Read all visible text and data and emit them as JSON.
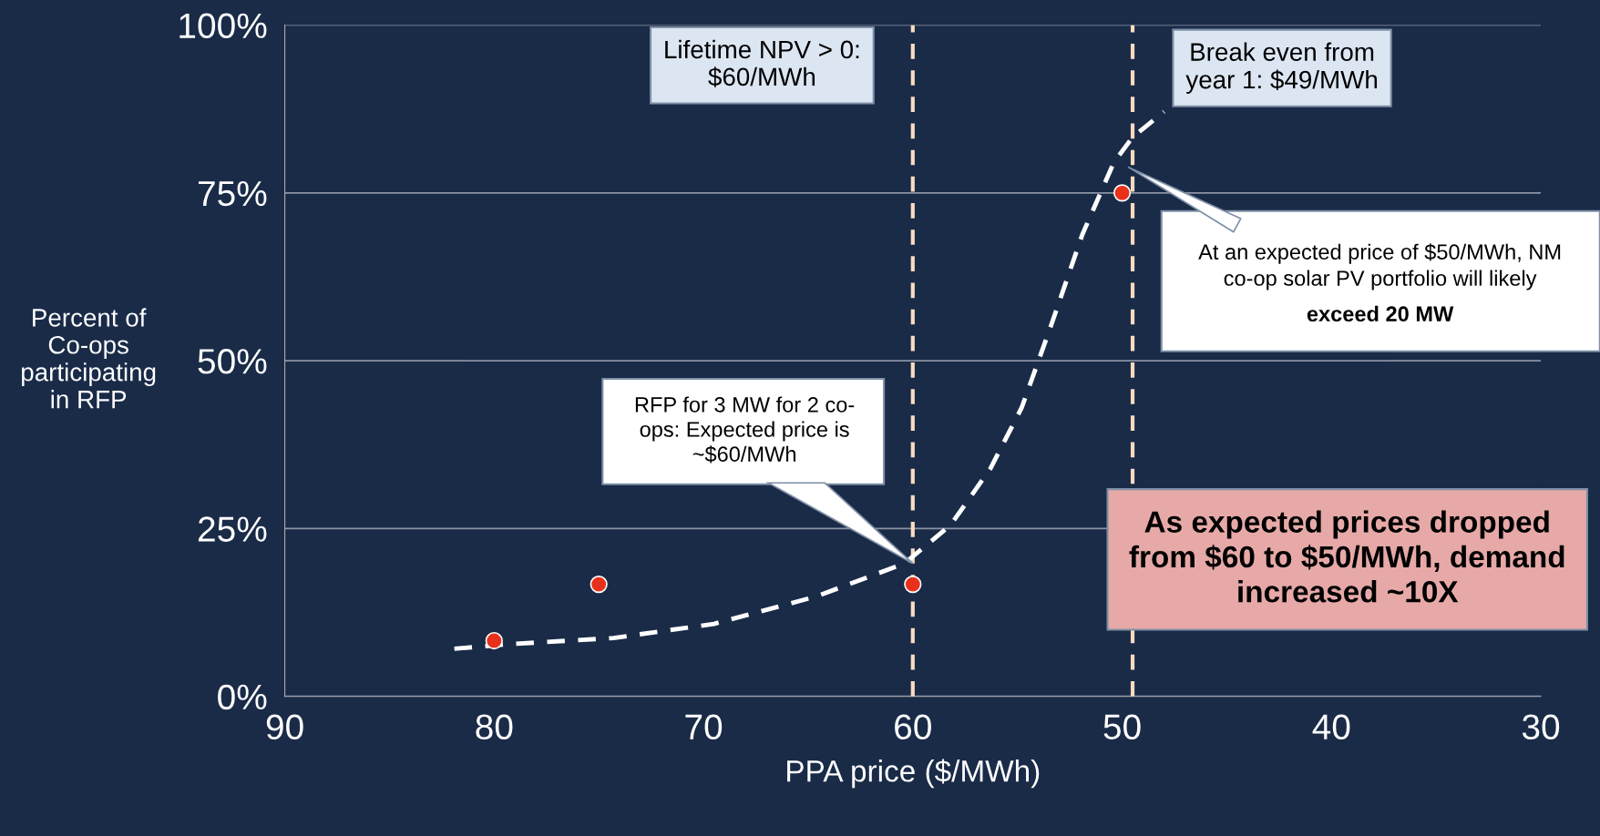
{
  "chart_data": {
    "type": "scatter",
    "xlabel": "PPA price ($/MWh)",
    "ylabel": "Percent of\nCo-ops\nparticipating\nin RFP",
    "xlim": [
      90,
      30
    ],
    "xticks": [
      90,
      80,
      70,
      60,
      50,
      40,
      30
    ],
    "ylim": [
      0,
      100
    ],
    "yticks": [
      {
        "value": 0,
        "label": "0%"
      },
      {
        "value": 25,
        "label": "25%"
      },
      {
        "value": 50,
        "label": "50%"
      },
      {
        "value": 75,
        "label": "75%"
      },
      {
        "value": 100,
        "label": "100%"
      }
    ],
    "grid": "y",
    "series": [
      {
        "color": "#e8311b",
        "marker": "circle",
        "x": [
          80,
          75,
          60,
          50
        ],
        "values": [
          8.3,
          16.7,
          16.7,
          75
        ]
      },
      {
        "type": "line",
        "color": "#ffffff",
        "line_style": "dashed",
        "marker": "none",
        "x": [
          81.9,
          79.2,
          74.3,
          69.5,
          64.6,
          60.4,
          58.2,
          56.3,
          54.8,
          53.4,
          51.9,
          50.4,
          49.5,
          48.0
        ],
        "values": [
          7.1,
          7.8,
          8.7,
          10.8,
          14.9,
          19.8,
          25.5,
          33.9,
          43,
          55.2,
          68.8,
          79.5,
          83.3,
          87.1
        ]
      }
    ],
    "ref_lines": [
      {
        "axis": "x",
        "value": 60,
        "label": "Lifetime NPV > 0:\n$60/MWh",
        "color": "#f9dcc0",
        "line_style": "dashed"
      },
      {
        "axis": "x",
        "value": 49.5,
        "label": "Break even from\nyear 1: $49/MWh",
        "color": "#f9dcc0",
        "line_style": "dashed"
      }
    ],
    "annotations": [
      "RFP for 3 MW for 2 co-\nops: Expected price is\n~$60/MWh",
      "At an expected price of $50/MWh, NM\nco-op solar PV portfolio will likely",
      "exceed 20 MW",
      "As expected prices dropped\nfrom $60 to $50/MWh, demand\nincreased ~10X"
    ]
  }
}
